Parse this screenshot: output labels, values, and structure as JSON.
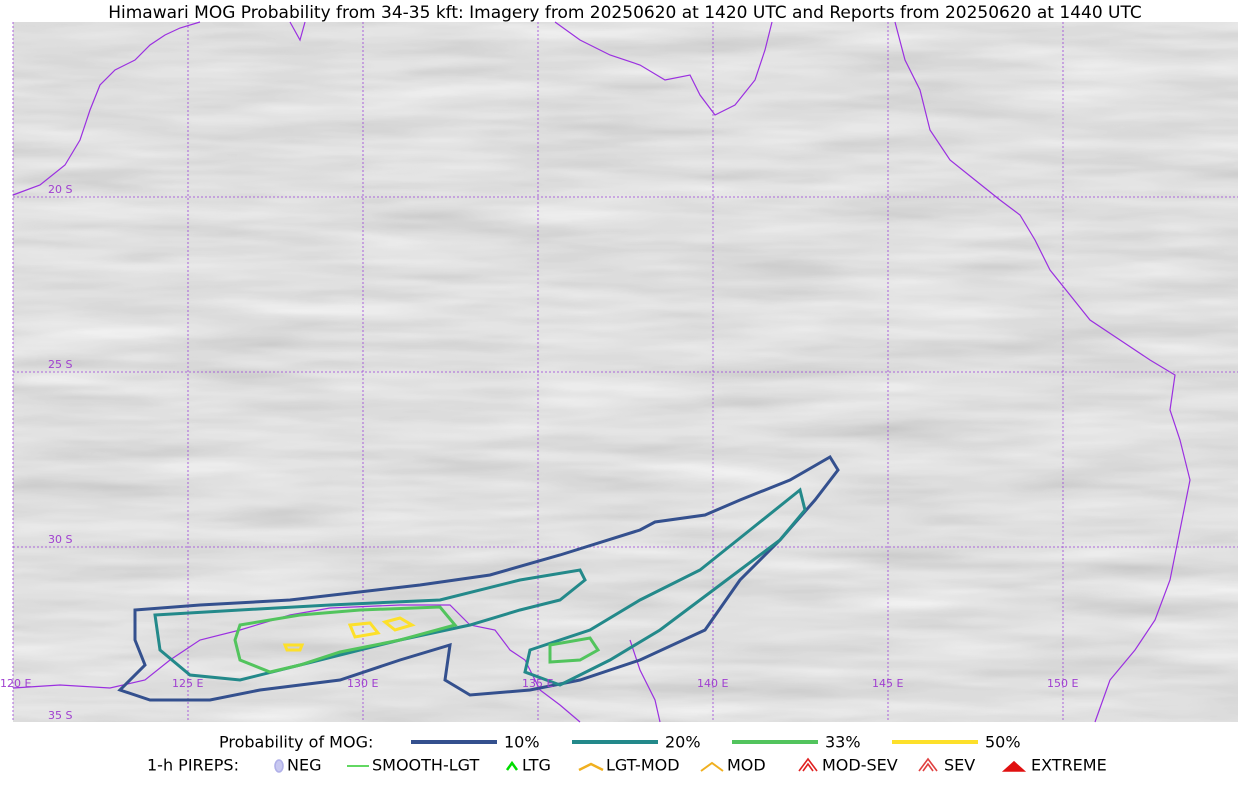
{
  "title": "Himawari MOG Probability from 34-35 kft: Imagery from 20250620 at 1420 UTC and Reports from 20250620 at 1440 UTC",
  "map": {
    "lat_labels": [
      "20 S",
      "25 S",
      "30 S",
      "35 S"
    ],
    "lon_labels": [
      "120 E",
      "125 E",
      "130 E",
      "135 E",
      "140 E",
      "145 E",
      "150 E"
    ]
  },
  "legend": {
    "probability": {
      "title": "Probability of MOG:",
      "items": [
        {
          "label": "10%",
          "color": "#34508e"
        },
        {
          "label": "20%",
          "color": "#23898a"
        },
        {
          "label": "33%",
          "color": "#52c45d"
        },
        {
          "label": "50%",
          "color": "#fde02a"
        }
      ]
    },
    "pireps": {
      "title": "1-h PIREPS:",
      "items": [
        {
          "label": "NEG"
        },
        {
          "label": "SMOOTH-LGT"
        },
        {
          "label": "LTG"
        },
        {
          "label": "LGT-MOD"
        },
        {
          "label": "MOD"
        },
        {
          "label": "MOD-SEV"
        },
        {
          "label": "SEV"
        },
        {
          "label": "EXTREME"
        }
      ]
    }
  }
}
